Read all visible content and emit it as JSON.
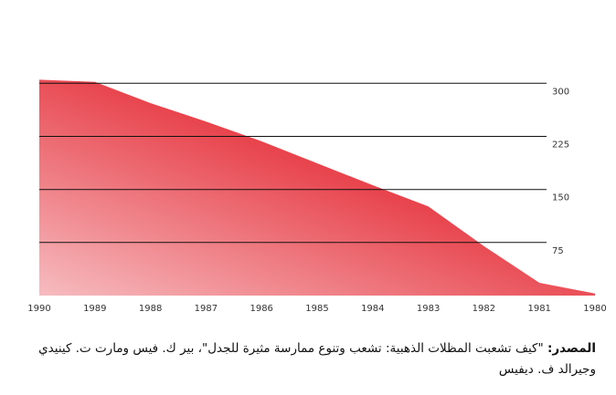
{
  "chart_data": {
    "type": "area",
    "x": [
      1990,
      1989,
      1988,
      1987,
      1986,
      1985,
      1984,
      1983,
      1982,
      1981,
      1980
    ],
    "values": [
      305,
      302,
      272,
      246,
      218,
      187,
      156,
      126,
      70,
      18,
      3
    ],
    "y_ticks": [
      300,
      225,
      150,
      75
    ],
    "ylim": [
      0,
      312
    ],
    "x_direction": "right-to-left",
    "y_axis_side": "right",
    "grid": true,
    "title": "",
    "xlabel": "",
    "ylabel": "",
    "colors": {
      "area_dark": "#e52b34",
      "area_light": "#f6bcc0",
      "grid": "#111111"
    }
  },
  "source": {
    "lead": "المصدر:",
    "text": "\"كيف تشعبت المظلات الذهبية: تشعب وتنوع ممارسة مثيرة للجدل\"، بير ك. فيس ومارت ت. كينيدي وجيرالد ف. ديفيس"
  }
}
